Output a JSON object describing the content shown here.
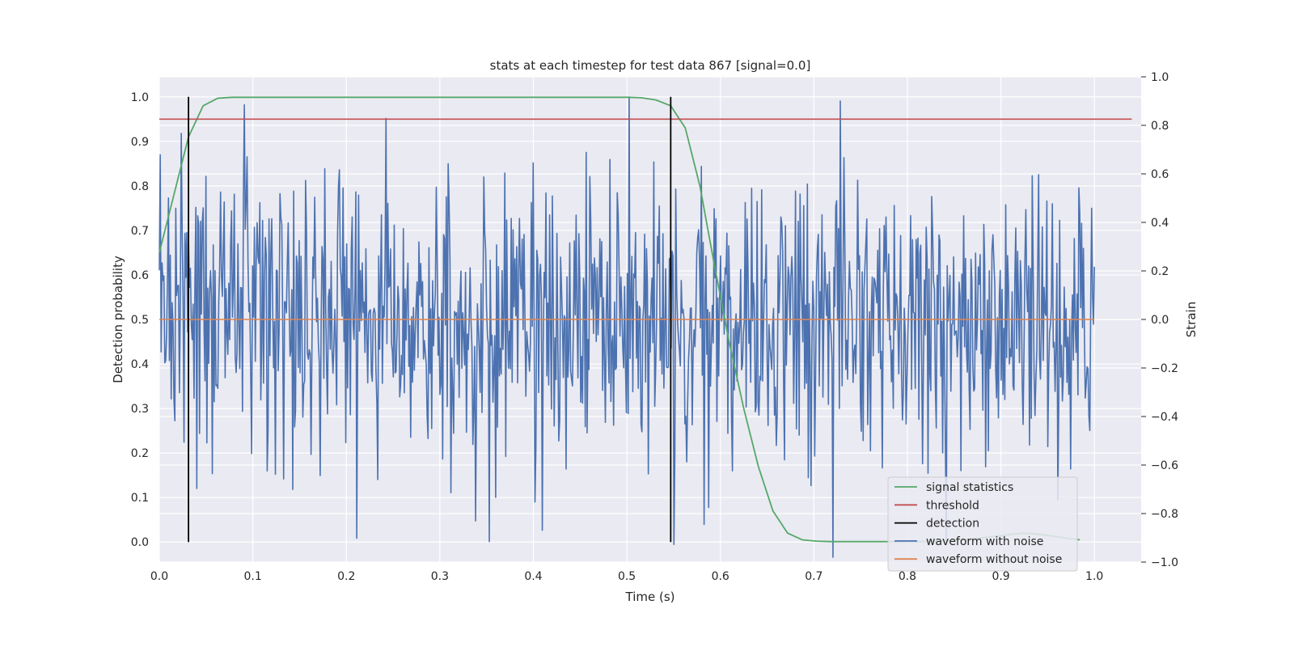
{
  "chart_data": {
    "type": "line",
    "title": "stats at each timestep for test data 867 [signal=0.0]",
    "xlabel": "Time (s)",
    "ylabel": "Detection probability",
    "y2label": "Strain",
    "xlim": [
      0.0,
      1.05
    ],
    "ylim": [
      -0.045,
      1.045
    ],
    "y2lim": [
      -1.0,
      1.0
    ],
    "xticks": [
      0.0,
      0.1,
      0.2,
      0.3,
      0.4,
      0.5,
      0.6,
      0.7,
      0.8,
      0.9,
      1.0
    ],
    "xtick_labels": [
      "0.0",
      "0.1",
      "0.2",
      "0.3",
      "0.4",
      "0.5",
      "0.6",
      "0.7",
      "0.8",
      "0.9",
      "1.0"
    ],
    "yticks": [
      0.0,
      0.1,
      0.2,
      0.3,
      0.4,
      0.5,
      0.6,
      0.7,
      0.8,
      0.9,
      1.0
    ],
    "ytick_labels": [
      "0.0",
      "0.1",
      "0.2",
      "0.3",
      "0.4",
      "0.5",
      "0.6",
      "0.7",
      "0.8",
      "0.9",
      "1.0"
    ],
    "y2ticks": [
      -1.0,
      -0.8,
      -0.6,
      -0.4,
      -0.2,
      0.0,
      0.2,
      0.4,
      0.6,
      0.8,
      1.0
    ],
    "y2tick_labels": [
      "−1.0",
      "−0.8",
      "−0.6",
      "−0.4",
      "−0.2",
      "0.0",
      "0.2",
      "0.4",
      "0.6",
      "0.8",
      "1.0"
    ],
    "grid": true,
    "legend_position": "lower-right",
    "background_color": "#eaeaf2",
    "series": [
      {
        "name": "signal statistics",
        "axis": "left",
        "color": "#55a868",
        "x": [
          0.0,
          0.0156,
          0.0312,
          0.0469,
          0.0625,
          0.0781,
          0.0938,
          0.1094,
          0.125,
          0.1406,
          0.1562,
          0.1719,
          0.1875,
          0.2031,
          0.2188,
          0.2344,
          0.25,
          0.2656,
          0.2812,
          0.2969,
          0.3125,
          0.3281,
          0.3438,
          0.3594,
          0.375,
          0.3906,
          0.4062,
          0.4219,
          0.4375,
          0.4531,
          0.4688,
          0.4844,
          0.5,
          0.5156,
          0.5312,
          0.5469,
          0.5625,
          0.5781,
          0.5938,
          0.6094,
          0.625,
          0.6406,
          0.6562,
          0.6719,
          0.6875,
          0.7031,
          0.7188,
          0.7344,
          0.75,
          0.7656,
          0.7812,
          0.7969,
          0.8125,
          0.8281,
          0.8438,
          0.8594,
          0.875,
          0.8906,
          0.9062,
          0.9219,
          0.9375,
          0.9531,
          0.9688,
          0.9844
        ],
        "y": [
          0.65,
          0.78,
          0.91,
          0.98,
          0.997,
          0.999,
          0.999,
          0.999,
          0.999,
          0.999,
          0.999,
          0.999,
          0.999,
          0.999,
          0.999,
          0.999,
          0.999,
          0.999,
          0.999,
          0.999,
          0.999,
          0.999,
          0.999,
          0.999,
          0.999,
          0.999,
          0.999,
          0.999,
          0.999,
          0.999,
          0.999,
          0.999,
          0.999,
          0.998,
          0.993,
          0.98,
          0.93,
          0.8,
          0.62,
          0.45,
          0.3,
          0.17,
          0.07,
          0.02,
          0.005,
          0.002,
          0.001,
          0.001,
          0.001,
          0.001,
          0.001,
          0.001,
          0.001,
          0.002,
          0.003,
          0.005,
          0.008,
          0.012,
          0.016,
          0.02,
          0.018,
          0.014,
          0.009,
          0.005
        ]
      },
      {
        "name": "threshold",
        "axis": "left",
        "color": "#c44e52",
        "x": [
          0.0,
          1.04
        ],
        "y": [
          0.95,
          0.95
        ]
      },
      {
        "name": "detection",
        "axis": "left",
        "color": "#000000",
        "type": "vlines",
        "x": [
          0.0312,
          0.5469
        ],
        "ymin": 0.0,
        "ymax": 1.0
      },
      {
        "name": "waveform with noise",
        "axis": "right",
        "color": "#4c72b0",
        "x_start": 0.0,
        "x_end": 1.0,
        "n_points": 1024,
        "noise_std": 0.3,
        "seed": 867
      },
      {
        "name": "waveform without noise",
        "axis": "right",
        "color": "#dd8452",
        "x": [
          0.0,
          1.0
        ],
        "y": [
          0.0,
          0.0
        ]
      }
    ]
  }
}
